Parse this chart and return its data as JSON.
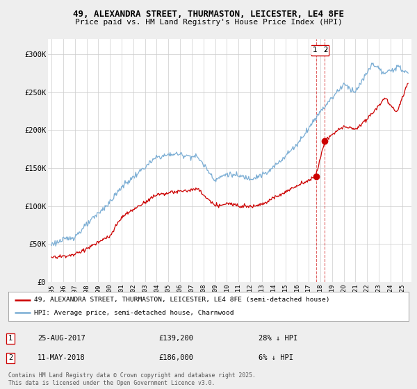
{
  "title_line1": "49, ALEXANDRA STREET, THURMASTON, LEICESTER, LE4 8FE",
  "title_line2": "Price paid vs. HM Land Registry's House Price Index (HPI)",
  "background_color": "#eeeeee",
  "plot_bg_color": "#ffffff",
  "legend_label_red": "49, ALEXANDRA STREET, THURMASTON, LEICESTER, LE4 8FE (semi-detached house)",
  "legend_label_blue": "HPI: Average price, semi-detached house, Charnwood",
  "transaction1_date": "25-AUG-2017",
  "transaction1_price": "£139,200",
  "transaction1_hpi": "28% ↓ HPI",
  "transaction2_date": "11-MAY-2018",
  "transaction2_price": "£186,000",
  "transaction2_hpi": "6% ↓ HPI",
  "footer": "Contains HM Land Registry data © Crown copyright and database right 2025.\nThis data is licensed under the Open Government Licence v3.0.",
  "red_color": "#cc0000",
  "blue_color": "#7aadd4",
  "ylim_min": 0,
  "ylim_max": 320000,
  "transaction1_year": 2017.65,
  "transaction1_value": 139200,
  "transaction2_year": 2018.37,
  "transaction2_value": 186000,
  "fig_width": 6.0,
  "fig_height": 5.6,
  "dpi": 100
}
